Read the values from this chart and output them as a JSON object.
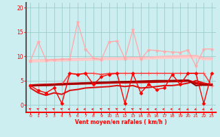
{
  "xlabel": "Vent moyen/en rafales ( km/h )",
  "xlim": [
    -0.5,
    23.5
  ],
  "ylim": [
    -1.5,
    21
  ],
  "xticks": [
    0,
    1,
    2,
    3,
    4,
    5,
    6,
    7,
    8,
    9,
    10,
    11,
    12,
    13,
    14,
    15,
    16,
    17,
    18,
    19,
    20,
    21,
    22,
    23
  ],
  "yticks": [
    0,
    5,
    10,
    15,
    20
  ],
  "bg_color": "#cceef0",
  "grid_color": "#99cccc",
  "lines": [
    {
      "y": [
        9.0,
        13.0,
        9.2,
        9.3,
        9.4,
        9.4,
        17.0,
        11.5,
        9.6,
        9.3,
        13.0,
        13.1,
        9.5,
        15.5,
        9.4,
        11.3,
        11.2,
        11.0,
        10.9,
        10.8,
        11.3,
        8.0,
        11.5,
        11.5
      ],
      "color": "#ffaaaa",
      "lw": 1.0,
      "marker": "*",
      "ms": 3.5,
      "zorder": 3
    },
    {
      "y": [
        9.0,
        9.1,
        9.15,
        9.2,
        9.25,
        9.3,
        9.35,
        9.4,
        9.45,
        9.45,
        9.5,
        9.5,
        9.55,
        9.6,
        9.6,
        9.65,
        9.75,
        9.85,
        9.9,
        9.95,
        10.0,
        10.0,
        9.5,
        9.5
      ],
      "color": "#ffbbbb",
      "lw": 3.0,
      "marker": null,
      "ms": 0,
      "zorder": 2
    },
    {
      "y": [
        9.0,
        9.05,
        9.1,
        9.15,
        9.2,
        9.25,
        9.28,
        9.32,
        9.35,
        9.38,
        9.4,
        9.42,
        9.45,
        9.48,
        9.5,
        9.52,
        9.58,
        9.65,
        9.68,
        9.72,
        9.75,
        9.78,
        9.35,
        9.35
      ],
      "color": "#ffcccc",
      "lw": 2.0,
      "marker": null,
      "ms": 0,
      "zorder": 2
    },
    {
      "y": [
        4.0,
        3.0,
        2.5,
        3.5,
        0.3,
        6.5,
        6.3,
        6.5,
        4.2,
        5.8,
        6.3,
        6.5,
        0.3,
        6.5,
        2.5,
        4.2,
        3.2,
        3.5,
        6.3,
        4.2,
        6.5,
        6.5,
        0.3,
        6.5
      ],
      "color": "#ff0000",
      "lw": 1.0,
      "marker": "D",
      "ms": 2.5,
      "zorder": 4
    },
    {
      "y": [
        4.0,
        4.1,
        4.15,
        4.2,
        4.3,
        4.35,
        4.4,
        4.45,
        4.5,
        4.55,
        4.6,
        4.65,
        4.65,
        4.7,
        4.72,
        4.75,
        4.8,
        4.85,
        4.9,
        4.92,
        5.0,
        4.5,
        4.2,
        4.2
      ],
      "color": "#cc0000",
      "lw": 2.5,
      "marker": null,
      "ms": 0,
      "zorder": 3
    },
    {
      "y": [
        3.5,
        2.5,
        2.0,
        2.5,
        2.2,
        3.0,
        3.2,
        3.5,
        3.6,
        3.7,
        3.8,
        4.0,
        3.8,
        4.0,
        3.5,
        3.6,
        3.8,
        4.0,
        4.0,
        4.2,
        4.5,
        5.0,
        4.5,
        4.2
      ],
      "color": "#dd1111",
      "lw": 1.5,
      "marker": null,
      "ms": 0,
      "zorder": 3
    },
    {
      "y": [
        4.0,
        4.0,
        4.0,
        4.1,
        4.2,
        6.5,
        6.3,
        6.5,
        6.5,
        6.3,
        6.5,
        6.5,
        6.5,
        6.5,
        6.5,
        6.5,
        6.5,
        6.5,
        6.5,
        6.5,
        6.5,
        6.5,
        6.5,
        4.0
      ],
      "color": "#ff4444",
      "lw": 1.2,
      "marker": "+",
      "ms": 4,
      "zorder": 3
    },
    {
      "y": [
        4.0,
        4.0,
        4.05,
        4.1,
        4.2,
        4.3,
        4.4,
        4.5,
        4.6,
        4.65,
        4.7,
        4.75,
        4.8,
        4.85,
        4.9,
        4.95,
        5.0,
        5.0,
        5.0,
        5.05,
        5.1,
        4.0,
        4.1,
        4.1
      ],
      "color": "#990000",
      "lw": 1.5,
      "marker": null,
      "ms": 0,
      "zorder": 3
    }
  ],
  "wind_arrows": {
    "x": [
      0,
      1,
      2,
      3,
      4,
      5,
      6,
      7,
      8,
      9,
      10,
      11,
      12,
      13,
      14,
      15,
      16,
      17,
      18,
      19,
      20,
      21,
      22,
      23
    ],
    "angles_deg": [
      225,
      225,
      225,
      225,
      225,
      270,
      315,
      270,
      270,
      225,
      225,
      225,
      270,
      225,
      225,
      270,
      270,
      270,
      270,
      270,
      315,
      315,
      315,
      315
    ]
  }
}
